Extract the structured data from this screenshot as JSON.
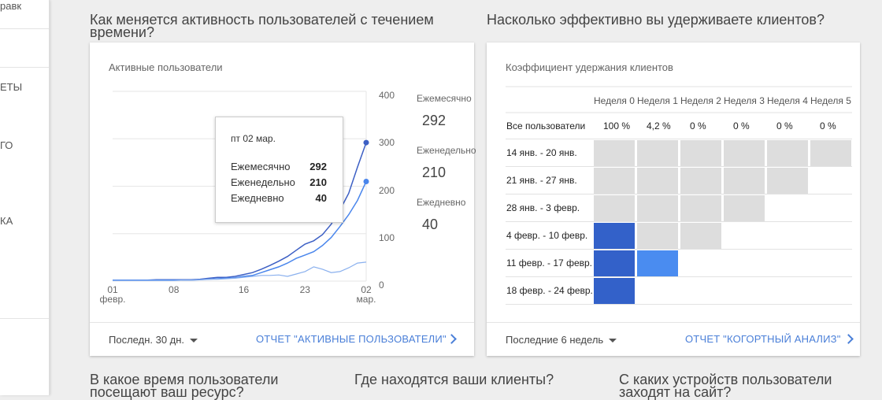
{
  "sidebar": {
    "items": [
      "равк",
      "ЕТЫ",
      "ГО",
      "КА"
    ]
  },
  "headings": [
    "Как меняется активность пользователей с течением времени?",
    "Насколько эффективно вы удерживаете клиентов?",
    "В какое время пользователи посещают ваш ресурс?",
    "Где находятся ваши клиенты?",
    "С каких устройств пользователи заходят на сайт?"
  ],
  "active_users_card": {
    "title": "Активные пользователи",
    "tooltip_date": "пт 02 мар.",
    "period": "Последн. 30 дн.",
    "report_link": "ОТЧЕТ \"АКТИВНЫЕ ПОЛЬЗОВАТЕЛИ\"",
    "chart_data": {
      "type": "line",
      "categories": [
        "01\nфевр.",
        null,
        null,
        null,
        null,
        null,
        null,
        "08",
        null,
        null,
        null,
        null,
        null,
        null,
        null,
        "16",
        null,
        null,
        null,
        null,
        null,
        null,
        "23",
        null,
        null,
        null,
        null,
        null,
        null,
        "02\nмар."
      ],
      "series": [
        {
          "name": "Ежемесячно",
          "color": "#3c5fc4",
          "values": [
            2,
            2,
            2,
            2,
            2,
            3,
            3,
            3,
            3,
            3,
            4,
            6,
            8,
            8,
            10,
            14,
            18,
            25,
            33,
            42,
            52,
            65,
            78,
            85,
            98,
            120,
            150,
            185,
            240,
            292
          ]
        },
        {
          "name": "Еженедельно",
          "color": "#4a86ec",
          "values": [
            2,
            2,
            2,
            2,
            2,
            2,
            2,
            2,
            2,
            2,
            3,
            4,
            5,
            6,
            7,
            10,
            12,
            18,
            24,
            30,
            38,
            48,
            55,
            62,
            75,
            92,
            115,
            140,
            170,
            210
          ]
        },
        {
          "name": "Ежедневно",
          "color": "#8ab0ee",
          "values": [
            1,
            1,
            1,
            1,
            1,
            1,
            1,
            1,
            2,
            2,
            3,
            4,
            4,
            5,
            6,
            8,
            10,
            12,
            12,
            13,
            10,
            15,
            20,
            30,
            25,
            18,
            20,
            28,
            38,
            40
          ]
        }
      ],
      "ylim": [
        0,
        400
      ],
      "yticks": [
        0,
        100,
        200,
        300,
        400
      ],
      "grid": true
    }
  },
  "cohort_card": {
    "title": "Коэффициент удержания клиентов",
    "columns": [
      "Неделя 0",
      "Неделя 1",
      "Неделя 2",
      "Неделя 3",
      "Неделя 4",
      "Неделя 5"
    ],
    "all_users": {
      "label": "Все пользователи",
      "values": [
        "100 %",
        "4,2 %",
        "0 %",
        "0 %",
        "0 %",
        "0 %"
      ]
    },
    "rows": [
      {
        "label": "14 янв. - 20 янв.",
        "cells": [
          "#dddddd",
          "#dddddd",
          "#dddddd",
          "#dddddd",
          "#dddddd",
          "#dddddd"
        ]
      },
      {
        "label": "21 янв. - 27 янв.",
        "cells": [
          "#dddddd",
          "#dddddd",
          "#dddddd",
          "#dddddd",
          "#dddddd"
        ]
      },
      {
        "label": "28 янв. - 3 февр.",
        "cells": [
          "#dddddd",
          "#dddddd",
          "#dddddd",
          "#dddddd"
        ]
      },
      {
        "label": "4 февр. - 10 февр.",
        "cells": [
          "#3361c9",
          "#dddddd",
          "#dddddd"
        ]
      },
      {
        "label": "11 февр. - 17 февр.",
        "cells": [
          "#3361c9",
          "#4a8cf0"
        ]
      },
      {
        "label": "18 февр. - 24 февр.",
        "cells": [
          "#3361c9"
        ]
      }
    ],
    "period": "Последние 6 недель",
    "report_link": "ОТЧЕТ \"КОГОРТНЫЙ АНАЛИЗ\""
  }
}
